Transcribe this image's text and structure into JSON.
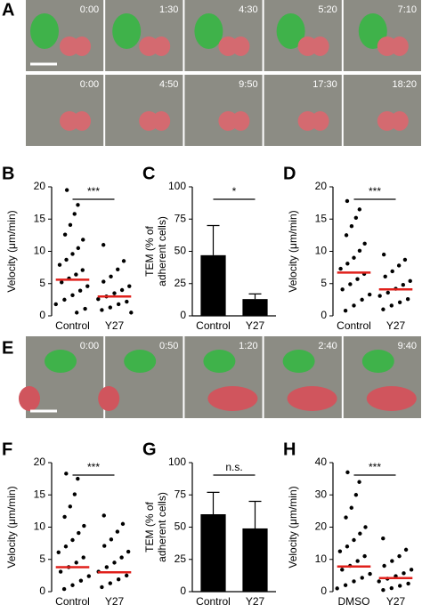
{
  "panels": {
    "A": {
      "label": "A",
      "rows": [
        [
          "0:00",
          "1:30",
          "4:30",
          "5:20",
          "7:10"
        ],
        [
          "0:00",
          "4:50",
          "9:50",
          "17:30",
          "18:20"
        ]
      ]
    },
    "E": {
      "label": "E",
      "rows": [
        [
          "0:00",
          "0:50",
          "1:20",
          "2:40",
          "9:40"
        ]
      ]
    }
  },
  "chart_data": [
    {
      "type": "strip",
      "panel": "B",
      "ylabel": [
        "Velocity (μm/min)"
      ],
      "ylim": [
        0,
        20
      ],
      "yticks": [
        0,
        5,
        10,
        15,
        20
      ],
      "annotation": "***",
      "mean_color": "#e0201b",
      "series": [
        {
          "name": "Control",
          "color": "#000000",
          "mean": 5.6,
          "values": [
            19.5,
            17.2,
            15.8,
            14.1,
            12.6,
            11.8,
            10.5,
            9.6,
            8.7,
            7.9,
            7.1,
            6.4,
            5.8,
            5.2,
            4.6,
            3.9,
            3.2,
            2.5,
            1.8,
            1.1,
            0.5
          ]
        },
        {
          "name": "Y27",
          "color": "#000000",
          "mean": 3.0,
          "values": [
            11.0,
            8.5,
            7.2,
            6.1,
            5.3,
            4.6,
            4.0,
            3.5,
            3.0,
            2.6,
            2.2,
            1.8,
            1.3,
            0.9,
            0.5
          ]
        }
      ]
    },
    {
      "type": "bar",
      "panel": "C",
      "ylabel": [
        "TEM (% of",
        "adherent cells)"
      ],
      "ylim": [
        0,
        100
      ],
      "yticks": [
        0,
        25,
        50,
        75,
        100
      ],
      "annotation": "*",
      "color": "#000000",
      "categories": [
        "Control",
        "Y27"
      ],
      "values": [
        47,
        13
      ],
      "errors": [
        23,
        4
      ]
    },
    {
      "type": "strip",
      "panel": "D",
      "ylabel": [
        "Velocity (μm/min)"
      ],
      "ylim": [
        0,
        20
      ],
      "yticks": [
        0,
        5,
        10,
        15,
        20
      ],
      "annotation": "***",
      "mean_color": "#e0201b",
      "series": [
        {
          "name": "Control",
          "color": "#000000",
          "mean": 6.7,
          "values": [
            17.8,
            16.5,
            15.2,
            13.9,
            12.5,
            11.2,
            10.1,
            9.0,
            8.1,
            7.3,
            6.5,
            5.7,
            4.9,
            4.1,
            3.3,
            2.5,
            1.6,
            0.8
          ]
        },
        {
          "name": "Y27",
          "color": "#000000",
          "mean": 4.1,
          "values": [
            9.5,
            8.7,
            7.8,
            6.9,
            6.1,
            5.4,
            4.8,
            4.2,
            3.6,
            3.1,
            2.6,
            2.1,
            1.6,
            1.0
          ]
        }
      ]
    },
    {
      "type": "strip",
      "panel": "F",
      "ylabel": [
        "Velocity (μm/min)"
      ],
      "ylim": [
        0,
        20
      ],
      "yticks": [
        0,
        5,
        10,
        15,
        20
      ],
      "annotation": "***",
      "mean_color": "#e0201b",
      "series": [
        {
          "name": "Control",
          "color": "#000000",
          "mean": 3.8,
          "values": [
            18.3,
            17.5,
            15.1,
            13.2,
            11.6,
            10.2,
            9.1,
            8.0,
            7.0,
            6.1,
            5.3,
            4.5,
            3.8,
            3.1,
            2.4,
            1.7,
            1.0,
            0.4
          ]
        },
        {
          "name": "Y27",
          "color": "#000000",
          "mean": 3.0,
          "values": [
            11.8,
            10.5,
            9.3,
            8.1,
            7.1,
            6.2,
            5.3,
            4.5,
            3.8,
            3.1,
            2.5,
            1.9,
            1.3,
            0.7
          ]
        }
      ]
    },
    {
      "type": "bar",
      "panel": "G",
      "ylabel": [
        "TEM (% of",
        "adherent cells)"
      ],
      "ylim": [
        0,
        100
      ],
      "yticks": [
        0,
        25,
        50,
        75,
        100
      ],
      "annotation": "n.s.",
      "color": "#000000",
      "categories": [
        "Control",
        "Y27"
      ],
      "values": [
        60,
        49
      ],
      "errors": [
        17,
        21
      ]
    },
    {
      "type": "strip",
      "panel": "H",
      "ylabel": [
        "Velocity (μm/min)"
      ],
      "ylim": [
        0,
        40
      ],
      "yticks": [
        0,
        10,
        20,
        30,
        40
      ],
      "annotation": "***",
      "mean_color": "#e0201b",
      "series": [
        {
          "name": "DMSO",
          "color": "#000000",
          "mean": 7.8,
          "values": [
            37,
            34,
            30,
            26,
            23,
            20,
            18,
            16,
            14,
            12.5,
            11,
            9.5,
            8,
            6.8,
            5.5,
            4.3,
            3.2,
            2,
            1
          ]
        },
        {
          "name": "Y27",
          "color": "#000000",
          "mean": 4.2,
          "values": [
            16.5,
            13,
            11,
            9.5,
            8,
            6.8,
            5.7,
            4.8,
            4,
            3.2,
            2.5,
            1.8,
            1.1,
            0.5
          ]
        }
      ]
    }
  ]
}
